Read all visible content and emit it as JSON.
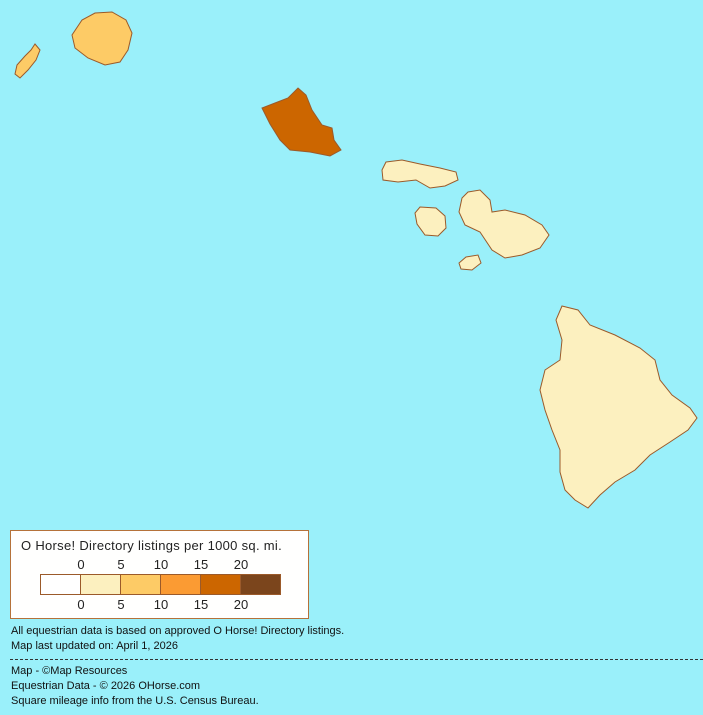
{
  "map": {
    "ocean_color": "#9AF0FA",
    "islands": [
      {
        "name": "Niihau",
        "color": "#FDCB66"
      },
      {
        "name": "Kauai",
        "color": "#FDCB66"
      },
      {
        "name": "Oahu",
        "color": "#CC6600"
      },
      {
        "name": "Molokai",
        "color": "#FCF0BF"
      },
      {
        "name": "Lanai",
        "color": "#FCF0BF"
      },
      {
        "name": "Maui",
        "color": "#FCF0BF"
      },
      {
        "name": "Kahoolawe",
        "color": "#FCF0BF"
      },
      {
        "name": "Hawaii",
        "color": "#FCF0BF"
      }
    ]
  },
  "legend": {
    "title": "O Horse! Directory listings per 1000 sq. mi.",
    "top_ticks": [
      "0",
      "5",
      "10",
      "15",
      "20"
    ],
    "bottom_ticks": [
      "0",
      "5",
      "10",
      "15",
      "20"
    ],
    "colors": [
      "#FFFFFF",
      "#FCF0BF",
      "#FDCB66",
      "#FB9B33",
      "#CC6600",
      "#7B451C"
    ]
  },
  "notes": {
    "data_basis": "All equestrian data is based on approved O Horse! Directory listings.",
    "updated": "Map last updated on: April 1, 2026"
  },
  "credits": {
    "map": "Map - ©Map Resources",
    "data": "Equestrian Data - © 2026 OHorse.com",
    "census": "Square mileage info from the U.S. Census Bureau."
  }
}
